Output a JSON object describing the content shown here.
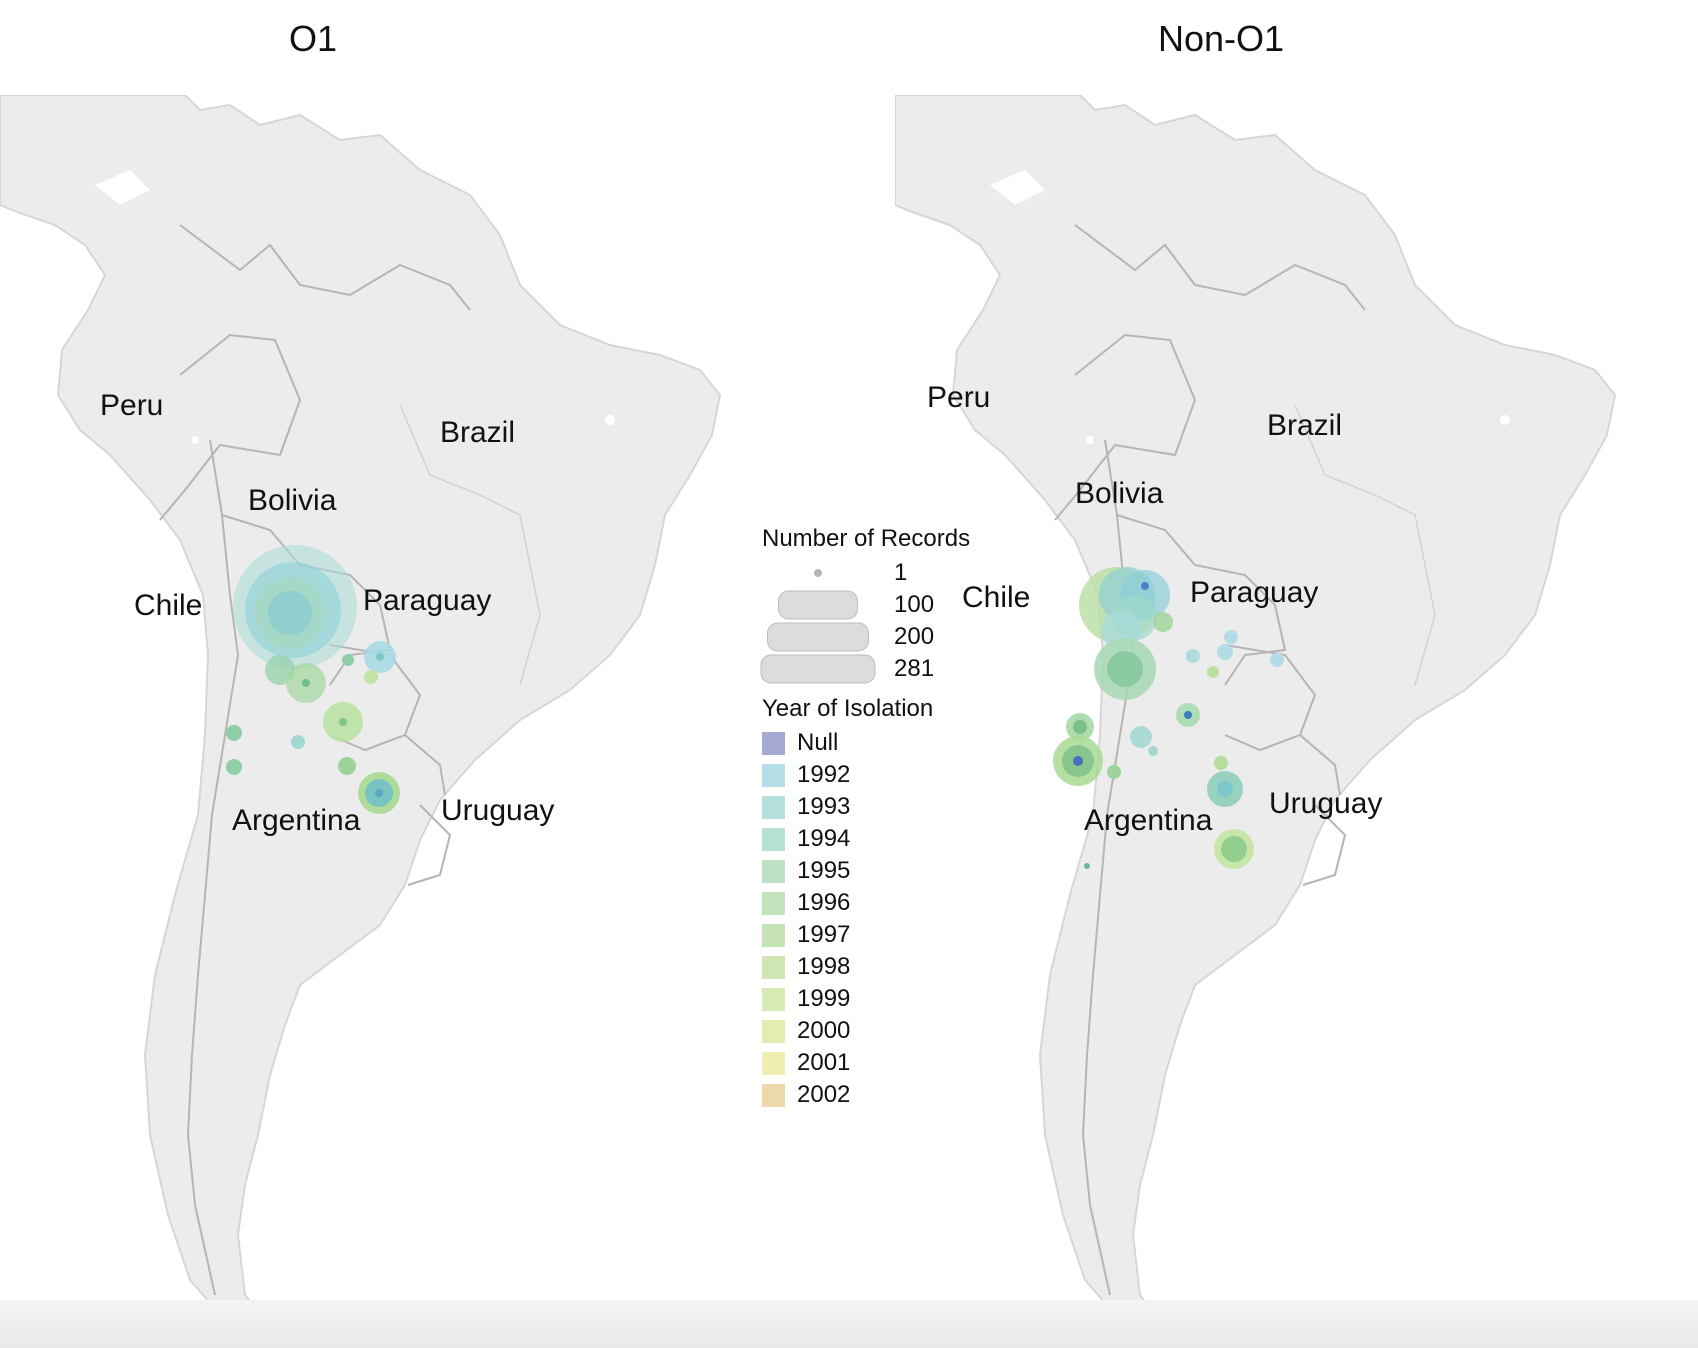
{
  "panels": [
    {
      "title": "O1"
    },
    {
      "title": "Non-O1"
    }
  ],
  "country_labels": {
    "peru": "Peru",
    "brazil": "Brazil",
    "bolivia": "Bolivia",
    "chile": "Chile",
    "paraguay": "Paraguay",
    "argentina": "Argentina",
    "uruguay": "Uruguay"
  },
  "legend": {
    "size_title": "Number of Records",
    "size_items": [
      {
        "label": "1",
        "value": 1
      },
      {
        "label": "100",
        "value": 100
      },
      {
        "label": "200",
        "value": 200
      },
      {
        "label": "281",
        "value": 281
      }
    ],
    "color_title": "Year of Isolation",
    "color_items": [
      {
        "label": "Null",
        "color": "#a6a9d3"
      },
      {
        "label": "1992",
        "color": "#b4dfe7"
      },
      {
        "label": "1993",
        "color": "#b5e0dc"
      },
      {
        "label": "1994",
        "color": "#b7e1d1"
      },
      {
        "label": "1995",
        "color": "#bee1c4"
      },
      {
        "label": "1996",
        "color": "#c4e3bd"
      },
      {
        "label": "1997",
        "color": "#c7e4b7"
      },
      {
        "label": "1998",
        "color": "#cfe6b3"
      },
      {
        "label": "1999",
        "color": "#d8eab1"
      },
      {
        "label": "2000",
        "color": "#e2edb0"
      },
      {
        "label": "2001",
        "color": "#eeeeb0"
      },
      {
        "label": "2002",
        "color": "#ecd8aa"
      }
    ]
  },
  "map_colors": {
    "land": "#ececec",
    "border": "#b5b5b5",
    "water": "#ffffff"
  }
}
